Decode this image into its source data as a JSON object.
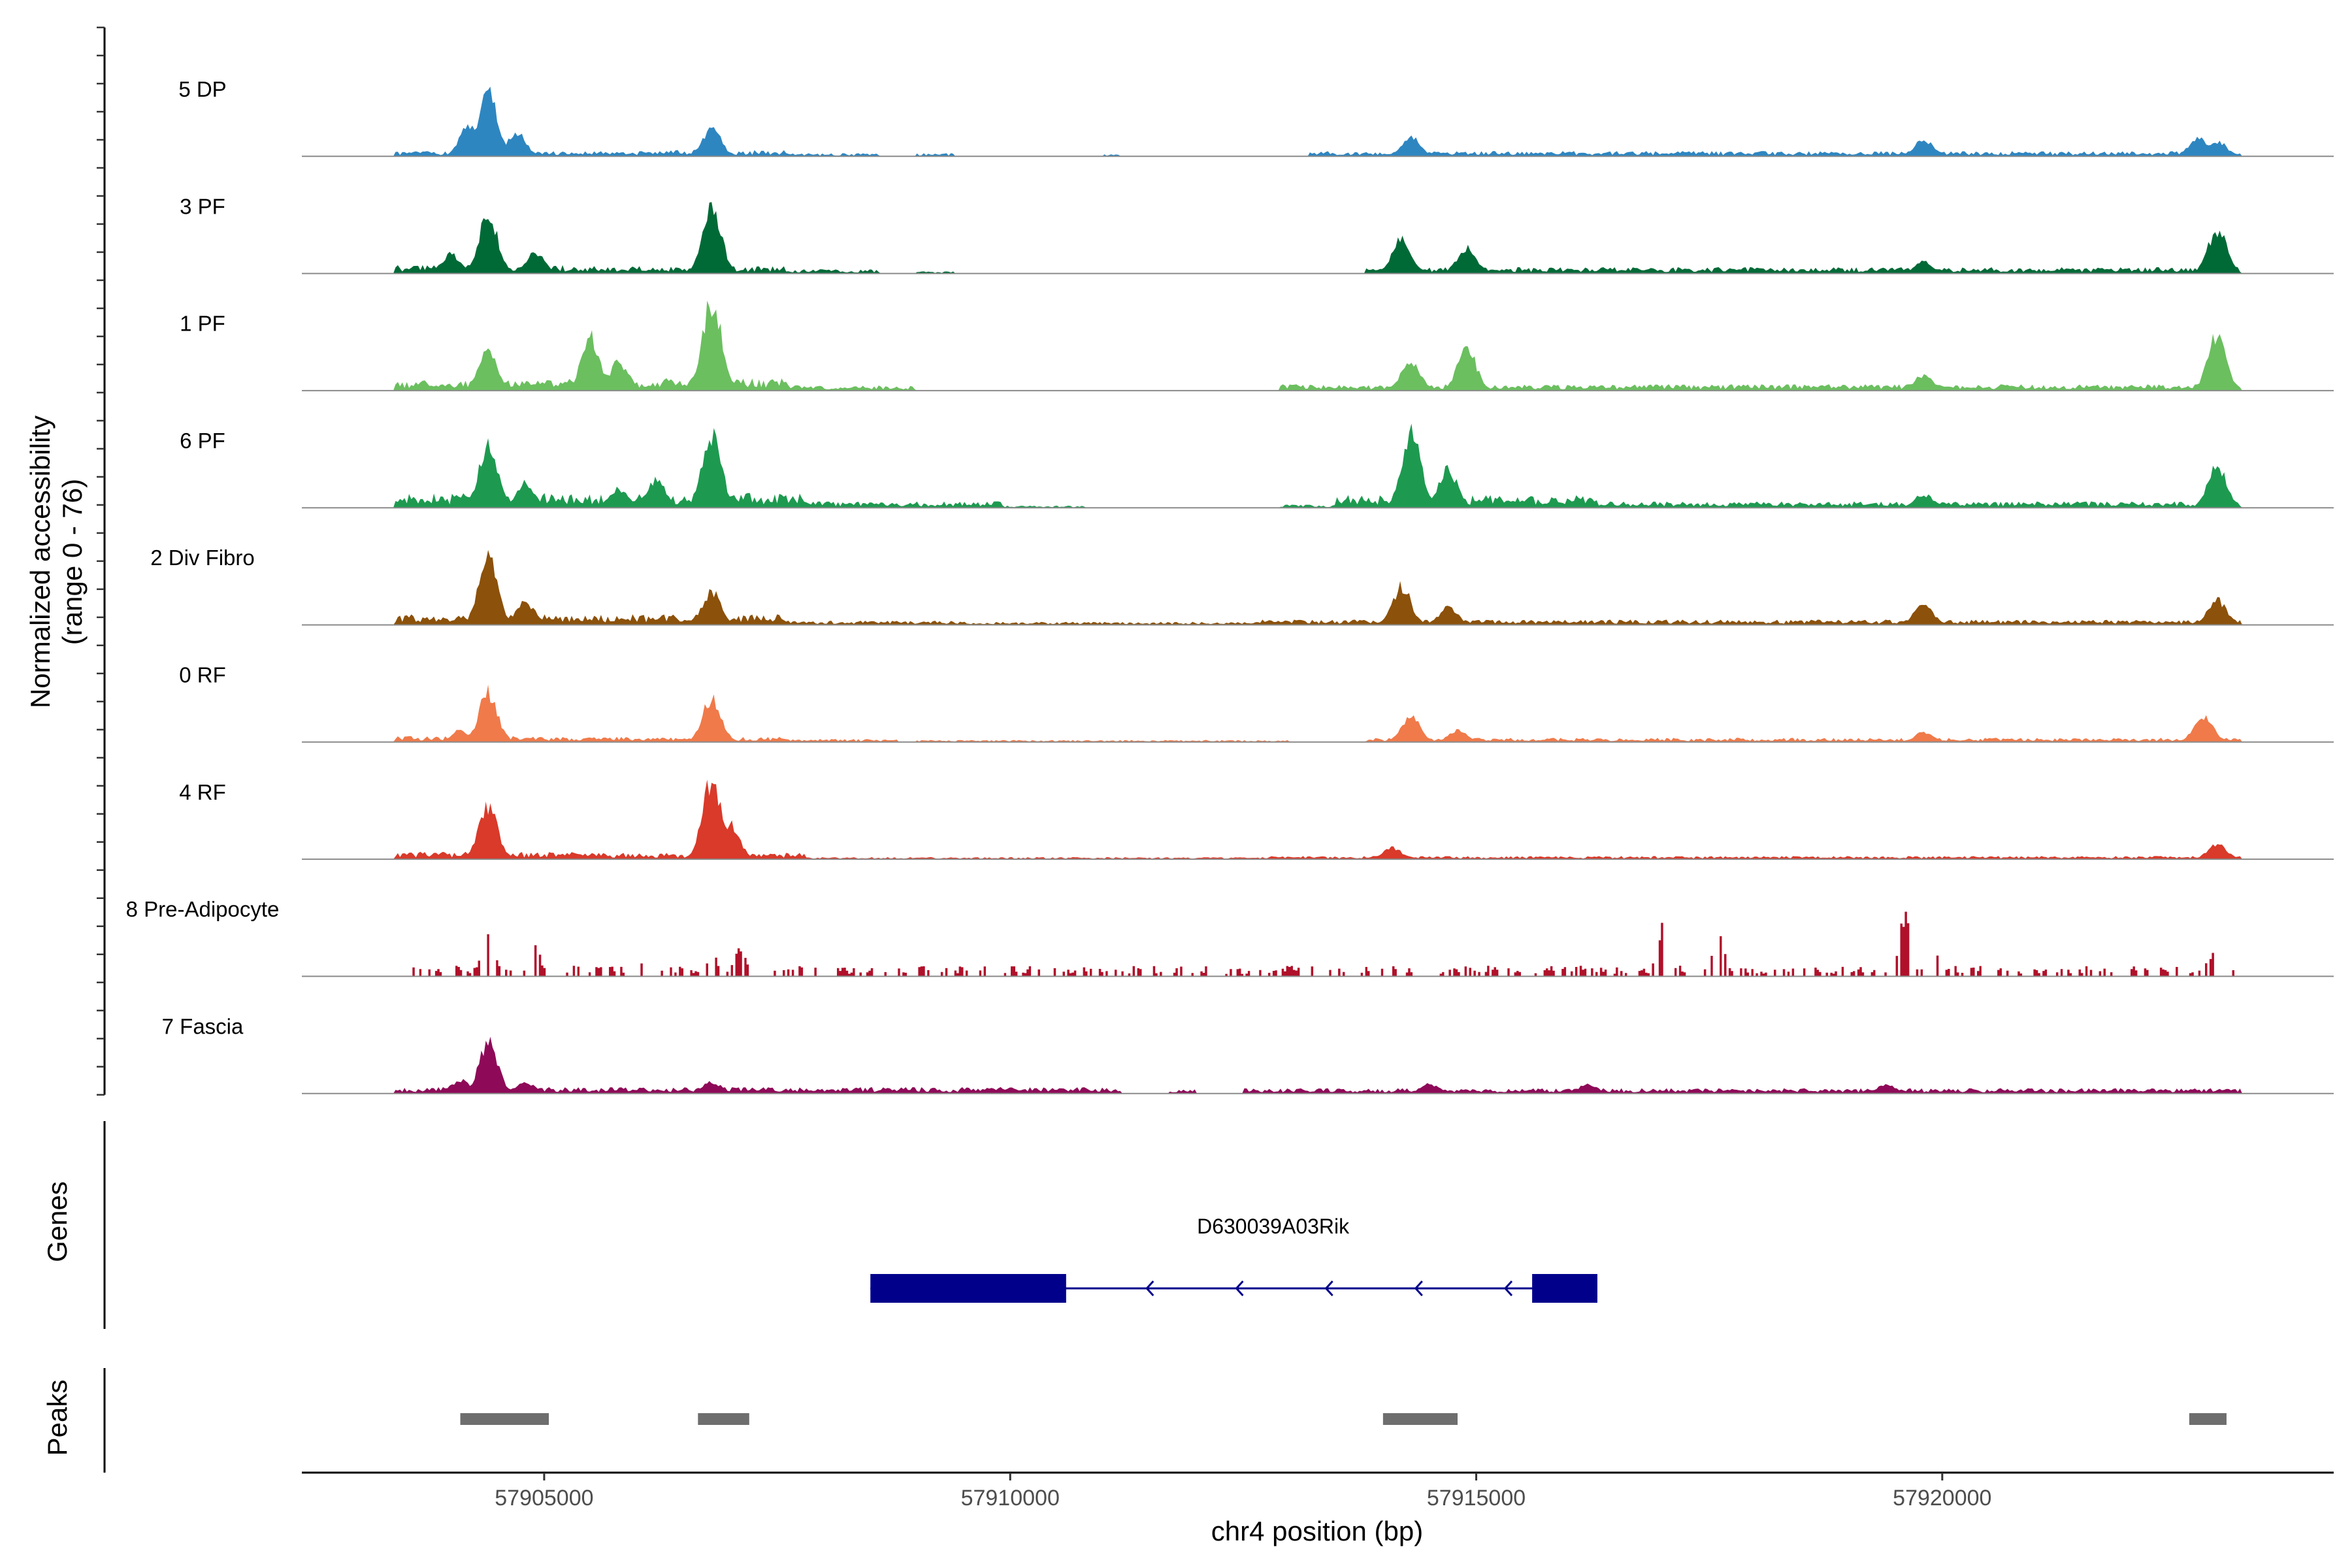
{
  "chart_data": {
    "type": "area",
    "chromosome": "chr4",
    "xlabel": "chr4 position (bp)",
    "ylabel_line1": "Normalized accessibility",
    "ylabel_line2": "(range 0 - 76)",
    "ylim": [
      0,
      76
    ],
    "xlim": [
      57902400,
      57924200
    ],
    "x_ticks": [
      57905000,
      57910000,
      57915000,
      57920000
    ],
    "x_tick_labels": [
      "57905000",
      "57910000",
      "57915000",
      "57920000"
    ],
    "genes_label": "Genes",
    "peaks_label": "Peaks",
    "tracks": [
      {
        "name": "5 DP",
        "color": "#2E86C1",
        "style": "smooth",
        "peaks": [
          [
            57904400,
            70
          ],
          [
            57904200,
            34
          ],
          [
            57904700,
            25
          ],
          [
            57906800,
            28
          ],
          [
            57914300,
            20
          ],
          [
            57919800,
            18
          ],
          [
            57922750,
            20
          ],
          [
            57922950,
            16
          ]
        ],
        "noise": [
          [
            57903400,
            57906300,
            5
          ],
          [
            57906300,
            57907600,
            6
          ],
          [
            57907600,
            57908600,
            3
          ],
          [
            57909000,
            57909400,
            3
          ],
          [
            57911000,
            57911200,
            2
          ],
          [
            57913200,
            57923200,
            5
          ]
        ]
      },
      {
        "name": "3 PF",
        "color": "#006A37",
        "style": "smooth",
        "peaks": [
          [
            57904400,
            62
          ],
          [
            57904000,
            20
          ],
          [
            57904900,
            22
          ],
          [
            57906800,
            72
          ],
          [
            57914200,
            36
          ],
          [
            57914900,
            28
          ],
          [
            57919800,
            12
          ],
          [
            57922950,
            46
          ]
        ],
        "noise": [
          [
            57903400,
            57905200,
            8
          ],
          [
            57905200,
            57907600,
            7
          ],
          [
            57907600,
            57908600,
            4
          ],
          [
            57909000,
            57909400,
            2
          ],
          [
            57913800,
            57923200,
            6
          ]
        ]
      },
      {
        "name": "1 PF",
        "color": "#6BBF5F",
        "style": "smooth",
        "peaks": [
          [
            57904400,
            42
          ],
          [
            57905500,
            55
          ],
          [
            57905800,
            30
          ],
          [
            57906800,
            95
          ],
          [
            57914300,
            32
          ],
          [
            57914900,
            44
          ],
          [
            57919800,
            16
          ],
          [
            57922950,
            58
          ]
        ],
        "noise": [
          [
            57903400,
            57905200,
            10
          ],
          [
            57905200,
            57907600,
            12
          ],
          [
            57907600,
            57909000,
            5
          ],
          [
            57912900,
            57923200,
            6
          ]
        ]
      },
      {
        "name": "6 PF",
        "color": "#1D9A50",
        "style": "smooth",
        "peaks": [
          [
            57904400,
            66
          ],
          [
            57904800,
            26
          ],
          [
            57905800,
            20
          ],
          [
            57906200,
            30
          ],
          [
            57906800,
            78
          ],
          [
            57914300,
            82
          ],
          [
            57914700,
            40
          ],
          [
            57919800,
            14
          ],
          [
            57922950,
            44
          ]
        ],
        "noise": [
          [
            57903400,
            57907800,
            14
          ],
          [
            57907800,
            57909900,
            6
          ],
          [
            57909900,
            57910800,
            2
          ],
          [
            57912900,
            57913500,
            3
          ],
          [
            57913500,
            57916300,
            12
          ],
          [
            57916300,
            57923200,
            6
          ]
        ]
      },
      {
        "name": "2 Div Fibro",
        "color": "#8C510A",
        "style": "smooth",
        "peaks": [
          [
            57904400,
            76
          ],
          [
            57904800,
            24
          ],
          [
            57906800,
            34
          ],
          [
            57914200,
            40
          ],
          [
            57914700,
            18
          ],
          [
            57919800,
            22
          ],
          [
            57922950,
            26
          ]
        ],
        "noise": [
          [
            57903400,
            57905300,
            10
          ],
          [
            57905300,
            57907600,
            10
          ],
          [
            57907600,
            57909500,
            4
          ],
          [
            57909500,
            57912700,
            3
          ],
          [
            57912700,
            57923200,
            5
          ]
        ]
      },
      {
        "name": "0 RF",
        "color": "#F07A4A",
        "style": "smooth",
        "peaks": [
          [
            57904400,
            52
          ],
          [
            57904100,
            12
          ],
          [
            57906800,
            46
          ],
          [
            57914300,
            28
          ],
          [
            57914800,
            12
          ],
          [
            57919800,
            10
          ],
          [
            57922800,
            28
          ]
        ],
        "noise": [
          [
            57903400,
            57905200,
            6
          ],
          [
            57905200,
            57907600,
            5
          ],
          [
            57907600,
            57908800,
            3
          ],
          [
            57909000,
            57913000,
            2
          ],
          [
            57913800,
            57923200,
            4
          ]
        ]
      },
      {
        "name": "4 RF",
        "color": "#D93A2A",
        "style": "smooth",
        "peaks": [
          [
            57904400,
            55
          ],
          [
            57906800,
            84
          ],
          [
            57907000,
            36
          ],
          [
            57914100,
            12
          ],
          [
            57922950,
            16
          ]
        ],
        "noise": [
          [
            57903400,
            57905400,
            7
          ],
          [
            57905400,
            57907800,
            6
          ],
          [
            57907800,
            57912800,
            2
          ],
          [
            57912800,
            57923200,
            3
          ]
        ]
      },
      {
        "name": "8 Pre-Adipocyte",
        "color": "#B0102A",
        "style": "bars",
        "peaks": [
          [
            57904400,
            54
          ],
          [
            57904900,
            30
          ],
          [
            57906100,
            18
          ],
          [
            57906800,
            22
          ],
          [
            57907100,
            28
          ],
          [
            57917000,
            52
          ],
          [
            57917600,
            46
          ],
          [
            57919600,
            62
          ],
          [
            57919900,
            30
          ],
          [
            57922900,
            22
          ]
        ],
        "noise": [
          [
            57903400,
            57923200,
            10
          ]
        ]
      },
      {
        "name": "7 Fascia",
        "color": "#8E0A58",
        "style": "smooth",
        "peaks": [
          [
            57904400,
            54
          ],
          [
            57904100,
            14
          ],
          [
            57904800,
            12
          ],
          [
            57906800,
            12
          ],
          [
            57914500,
            10
          ],
          [
            57916200,
            10
          ],
          [
            57919400,
            10
          ]
        ],
        "noise": [
          [
            57903400,
            57911200,
            6
          ],
          [
            57911700,
            57912000,
            4
          ],
          [
            57912500,
            57923200,
            5
          ]
        ]
      }
    ],
    "genes": [
      {
        "name": "D630039A03Rik",
        "strand": "-",
        "start": 57908500,
        "end": 57916300,
        "exons": [
          [
            57908500,
            57910600
          ],
          [
            57915600,
            57916300
          ]
        ],
        "color": "#00008B"
      }
    ],
    "peak_regions": [
      [
        57904100,
        57905050
      ],
      [
        57906650,
        57907200
      ],
      [
        57914000,
        57914800
      ],
      [
        57922650,
        57923050
      ]
    ]
  }
}
